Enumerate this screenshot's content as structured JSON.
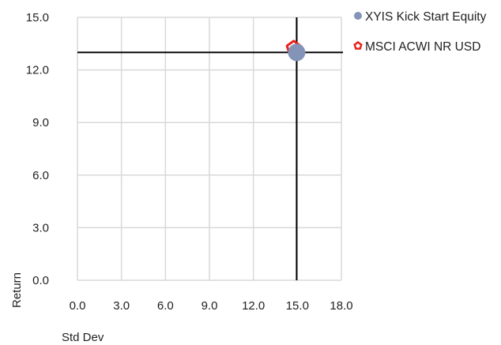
{
  "chart_data": {
    "type": "scatter",
    "xlabel": "Std Dev",
    "ylabel": "Return",
    "xlim": [
      0,
      18
    ],
    "ylim": [
      0,
      15
    ],
    "x_ticks": [
      "0.0",
      "3.0",
      "6.0",
      "9.0",
      "12.0",
      "15.0",
      "18.0"
    ],
    "y_ticks": [
      "0.0",
      "3.0",
      "6.0",
      "9.0",
      "12.0",
      "15.0"
    ],
    "grid": true,
    "legend_position": "top-right",
    "series": [
      {
        "name": "XYIS Kick Start Equity",
        "marker": "circle",
        "color": "#8494b8",
        "x": 14.95,
        "y": 13.0
      },
      {
        "name": "MSCI ACWI NR USD",
        "marker": "pentagon",
        "color": "#e8221a",
        "x": 14.75,
        "y": 13.25
      }
    ],
    "crosshair": {
      "x": 14.95,
      "y": 13.0,
      "color": "#000000"
    }
  }
}
